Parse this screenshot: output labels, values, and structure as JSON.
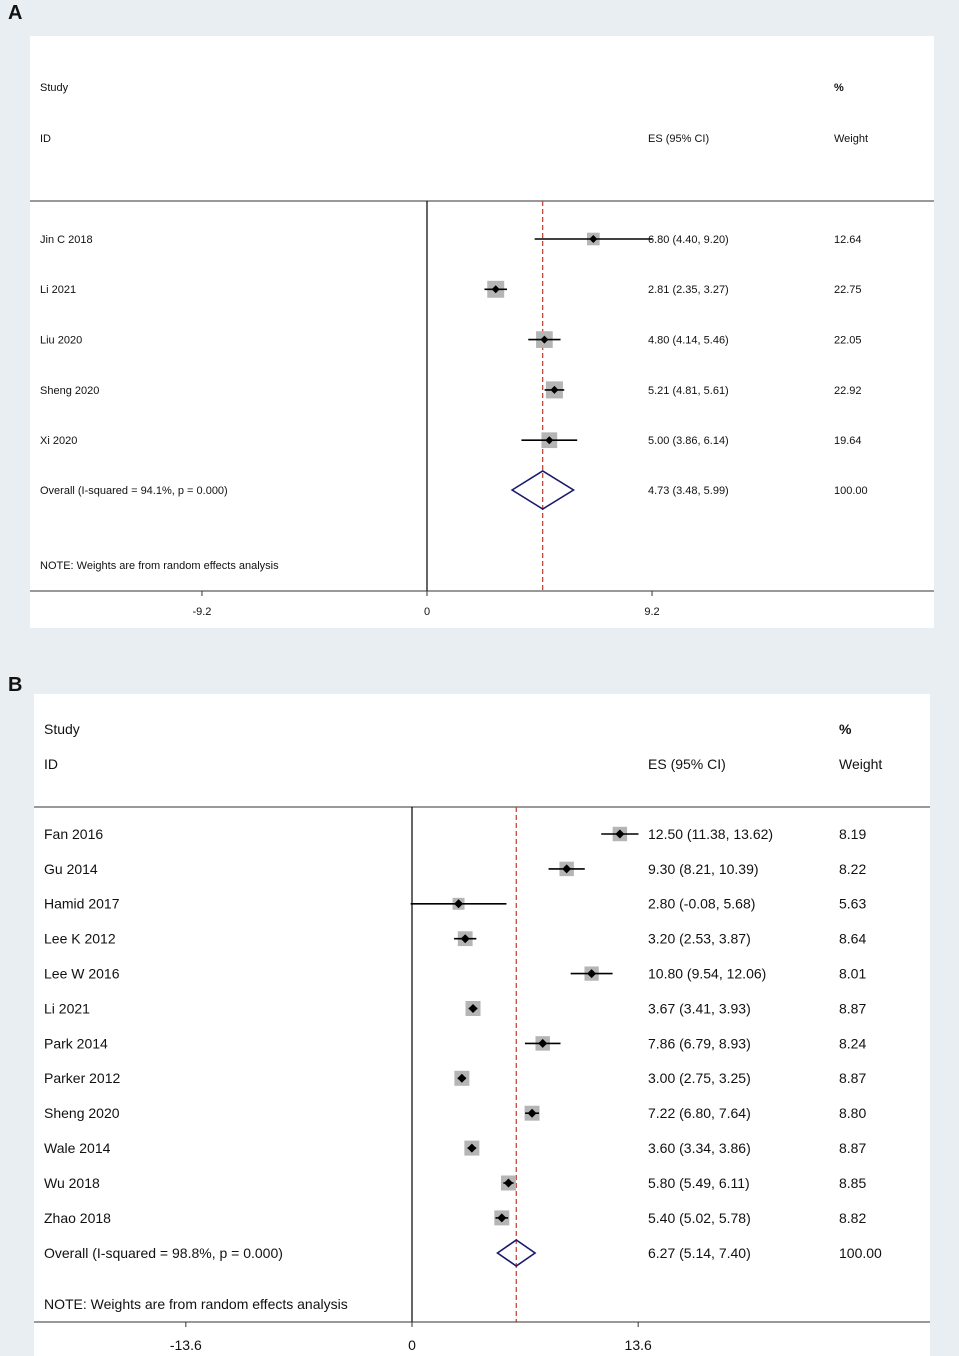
{
  "panels": [
    {
      "label": "A",
      "headers": {
        "study_line1": "Study",
        "study_line2": "ID",
        "es": "ES (95% CI)",
        "weight_line1": "%",
        "weight_line2": "Weight"
      },
      "note": "NOTE: Weights are from random effects analysis",
      "overall_label": "Overall  (I-squared = 94.1%, p = 0.000)",
      "overall_es": "4.73 (3.48, 5.99)",
      "overall_weight": "100.00",
      "xticks": [
        "-9.2",
        "0",
        "9.2"
      ]
    },
    {
      "label": "B",
      "headers": {
        "study_line1": "Study",
        "study_line2": "ID",
        "es": "ES (95% CI)",
        "weight_line1": "%",
        "weight_line2": "Weight"
      },
      "note": "NOTE: Weights are from random effects analysis",
      "overall_label": "Overall  (I-squared = 98.8%, p = 0.000)",
      "overall_es": "6.27 (5.14, 7.40)",
      "overall_weight": "100.00",
      "xticks": [
        "-13.6",
        "0",
        "13.6"
      ]
    }
  ],
  "chart_data": [
    {
      "type": "forest",
      "x_ticks": [
        -9.2,
        0,
        9.2
      ],
      "null_line": 0,
      "studies": [
        {
          "id": "Jin C 2018",
          "es": 6.8,
          "lo": 4.4,
          "hi": 9.2,
          "weight": 12.64,
          "label": "6.80 (4.40, 9.20)",
          "weight_label": "12.64"
        },
        {
          "id": "Li 2021",
          "es": 2.81,
          "lo": 2.35,
          "hi": 3.27,
          "weight": 22.75,
          "label": "2.81 (2.35, 3.27)",
          "weight_label": "22.75"
        },
        {
          "id": "Liu 2020",
          "es": 4.8,
          "lo": 4.14,
          "hi": 5.46,
          "weight": 22.05,
          "label": "4.80 (4.14, 5.46)",
          "weight_label": "22.05"
        },
        {
          "id": "Sheng 2020",
          "es": 5.21,
          "lo": 4.81,
          "hi": 5.61,
          "weight": 22.92,
          "label": "5.21 (4.81, 5.61)",
          "weight_label": "22.92"
        },
        {
          "id": "Xi 2020",
          "es": 5.0,
          "lo": 3.86,
          "hi": 6.14,
          "weight": 19.64,
          "label": "5.00 (3.86, 6.14)",
          "weight_label": "19.64"
        }
      ],
      "overall": {
        "es": 4.73,
        "lo": 3.48,
        "hi": 5.99,
        "i_squared": "94.1%",
        "p": "0.000",
        "weight": 100.0
      }
    },
    {
      "type": "forest",
      "x_ticks": [
        -13.6,
        0,
        13.6
      ],
      "null_line": 0,
      "studies": [
        {
          "id": "Fan 2016",
          "es": 12.5,
          "lo": 11.38,
          "hi": 13.62,
          "weight": 8.19,
          "label": "12.50 (11.38, 13.62)",
          "weight_label": "8.19"
        },
        {
          "id": "Gu 2014",
          "es": 9.3,
          "lo": 8.21,
          "hi": 10.39,
          "weight": 8.22,
          "label": "9.30 (8.21, 10.39)",
          "weight_label": "8.22"
        },
        {
          "id": "Hamid 2017",
          "es": 2.8,
          "lo": -0.08,
          "hi": 5.68,
          "weight": 5.63,
          "label": "2.80 (-0.08, 5.68)",
          "weight_label": "5.63"
        },
        {
          "id": "Lee K 2012",
          "es": 3.2,
          "lo": 2.53,
          "hi": 3.87,
          "weight": 8.64,
          "label": "3.20 (2.53, 3.87)",
          "weight_label": "8.64"
        },
        {
          "id": "Lee W 2016",
          "es": 10.8,
          "lo": 9.54,
          "hi": 12.06,
          "weight": 8.01,
          "label": "10.80 (9.54, 12.06)",
          "weight_label": "8.01"
        },
        {
          "id": "Li 2021",
          "es": 3.67,
          "lo": 3.41,
          "hi": 3.93,
          "weight": 8.87,
          "label": "3.67 (3.41, 3.93)",
          "weight_label": "8.87"
        },
        {
          "id": "Park 2014",
          "es": 7.86,
          "lo": 6.79,
          "hi": 8.93,
          "weight": 8.24,
          "label": "7.86 (6.79, 8.93)",
          "weight_label": "8.24"
        },
        {
          "id": "Parker 2012",
          "es": 3.0,
          "lo": 2.75,
          "hi": 3.25,
          "weight": 8.87,
          "label": "3.00 (2.75, 3.25)",
          "weight_label": "8.87"
        },
        {
          "id": "Sheng 2020",
          "es": 7.22,
          "lo": 6.8,
          "hi": 7.64,
          "weight": 8.8,
          "label": "7.22 (6.80, 7.64)",
          "weight_label": "8.80"
        },
        {
          "id": "Wale 2014",
          "es": 3.6,
          "lo": 3.34,
          "hi": 3.86,
          "weight": 8.87,
          "label": "3.60 (3.34, 3.86)",
          "weight_label": "8.87"
        },
        {
          "id": "Wu 2018",
          "es": 5.8,
          "lo": 5.49,
          "hi": 6.11,
          "weight": 8.85,
          "label": "5.80 (5.49, 6.11)",
          "weight_label": "8.85"
        },
        {
          "id": "Zhao 2018",
          "es": 5.4,
          "lo": 5.02,
          "hi": 5.78,
          "weight": 8.82,
          "label": "5.40 (5.02, 5.78)",
          "weight_label": "8.82"
        }
      ],
      "overall": {
        "es": 6.27,
        "lo": 5.14,
        "hi": 7.4,
        "i_squared": "98.8%",
        "p": "0.000",
        "weight": 100.0
      }
    }
  ],
  "colors": {
    "diamond": "#1a1a6e",
    "reference_line": "#c0392b",
    "weight_box": "#b5b5b5",
    "background": "#e8eef2",
    "plot_bg": "#ffffff"
  }
}
